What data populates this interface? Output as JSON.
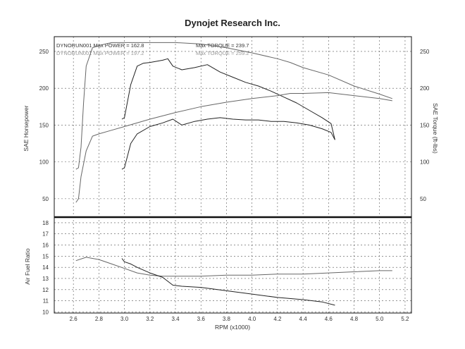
{
  "chart_data": [
    {
      "type": "line",
      "title": "Dynojet Research Inc.",
      "legend": [
        {
          "run": "DYNORUN001",
          "max_power_label": "Max POWER =",
          "max_power": "162.8",
          "max_torque_label": "Max TORQUE =",
          "max_torque": "239.7"
        },
        {
          "run": "DYNORUN001",
          "max_power_label": "Max POWER =",
          "max_power": "197.2",
          "max_torque_label": "Max TORQUE =",
          "max_torque": "259.2"
        }
      ],
      "xlabel": "RPM (x1000)",
      "ylabel_left": "SAE Horsepower",
      "ylabel_right": "SAE Torque (ft-lbs)",
      "xlim": [
        2.45,
        5.25
      ],
      "ylim": [
        25,
        270
      ],
      "xticks": [
        "2.6",
        "2.8",
        "3.0",
        "3.2",
        "3.4",
        "3.6",
        "3.8",
        "4.0",
        "4.2",
        "4.4",
        "4.6",
        "4.8",
        "5.0",
        "5.2"
      ],
      "yticks_left": [
        "50",
        "100",
        "150",
        "200",
        "250"
      ],
      "yticks_right": [
        "50",
        "100",
        "150",
        "200",
        "250"
      ],
      "grid": true,
      "series": [
        {
          "color": "#666666",
          "x": [
            2.62,
            2.64,
            2.66,
            2.68,
            2.7,
            2.75,
            2.8,
            2.9,
            3.0,
            3.2,
            3.4,
            3.6,
            3.8,
            4.0,
            4.2,
            4.3,
            4.4,
            4.6,
            4.8,
            5.0,
            5.1
          ],
          "y": [
            90,
            92,
            120,
            180,
            230,
            255,
            258,
            262,
            262,
            262,
            262,
            260,
            255,
            248,
            240,
            235,
            228,
            218,
            203,
            192,
            186
          ]
        },
        {
          "color": "#222222",
          "x": [
            2.98,
            3.0,
            3.05,
            3.1,
            3.15,
            3.2,
            3.3,
            3.34,
            3.38,
            3.45,
            3.55,
            3.65,
            3.75,
            3.85,
            3.95,
            4.05,
            4.15,
            4.25,
            4.35,
            4.45,
            4.55,
            4.62,
            4.65
          ],
          "y": [
            158,
            160,
            205,
            230,
            234,
            235,
            238,
            240,
            230,
            225,
            228,
            232,
            222,
            215,
            208,
            203,
            196,
            188,
            180,
            170,
            160,
            152,
            130
          ]
        },
        {
          "color": "#666666",
          "x": [
            2.62,
            2.64,
            2.66,
            2.7,
            2.75,
            2.8,
            2.9,
            3.0,
            3.2,
            3.4,
            3.6,
            3.8,
            4.0,
            4.2,
            4.3,
            4.4,
            4.6,
            4.8,
            5.0,
            5.1
          ],
          "y": [
            45,
            50,
            80,
            115,
            135,
            138,
            143,
            148,
            158,
            167,
            175,
            181,
            186,
            190,
            193,
            193,
            194,
            190,
            186,
            183
          ]
        },
        {
          "color": "#222222",
          "x": [
            2.98,
            3.0,
            3.05,
            3.1,
            3.2,
            3.3,
            3.38,
            3.45,
            3.55,
            3.65,
            3.75,
            3.85,
            3.95,
            4.05,
            4.15,
            4.25,
            4.35,
            4.45,
            4.55,
            4.62,
            4.65
          ],
          "y": [
            90,
            92,
            125,
            138,
            148,
            153,
            158,
            150,
            155,
            158,
            160,
            158,
            157,
            157,
            155,
            155,
            153,
            150,
            145,
            140,
            130
          ]
        }
      ]
    },
    {
      "type": "line",
      "ylabel": "Air Fuel Ratio",
      "xlim": [
        2.45,
        5.25
      ],
      "ylim": [
        9.9,
        18.5
      ],
      "yticks": [
        "10",
        "11",
        "12",
        "13",
        "14",
        "15",
        "16",
        "17",
        "18"
      ],
      "grid": true,
      "series": [
        {
          "color": "#666666",
          "x": [
            2.62,
            2.7,
            2.8,
            2.9,
            3.0,
            3.1,
            3.2,
            3.3,
            3.4,
            3.6,
            3.8,
            4.0,
            4.2,
            4.4,
            4.6,
            4.8,
            5.0,
            5.1
          ],
          "y": [
            14.6,
            14.9,
            14.7,
            14.3,
            13.9,
            13.5,
            13.3,
            13.2,
            13.2,
            13.2,
            13.3,
            13.3,
            13.4,
            13.4,
            13.5,
            13.6,
            13.7,
            13.7
          ]
        },
        {
          "color": "#222222",
          "x": [
            2.98,
            3.0,
            3.05,
            3.1,
            3.2,
            3.3,
            3.38,
            3.45,
            3.6,
            3.8,
            4.0,
            4.2,
            4.4,
            4.55,
            4.65
          ],
          "y": [
            14.8,
            14.5,
            14.3,
            14.0,
            13.5,
            13.1,
            12.4,
            12.3,
            12.2,
            11.9,
            11.6,
            11.3,
            11.1,
            10.9,
            10.6
          ]
        }
      ]
    }
  ]
}
